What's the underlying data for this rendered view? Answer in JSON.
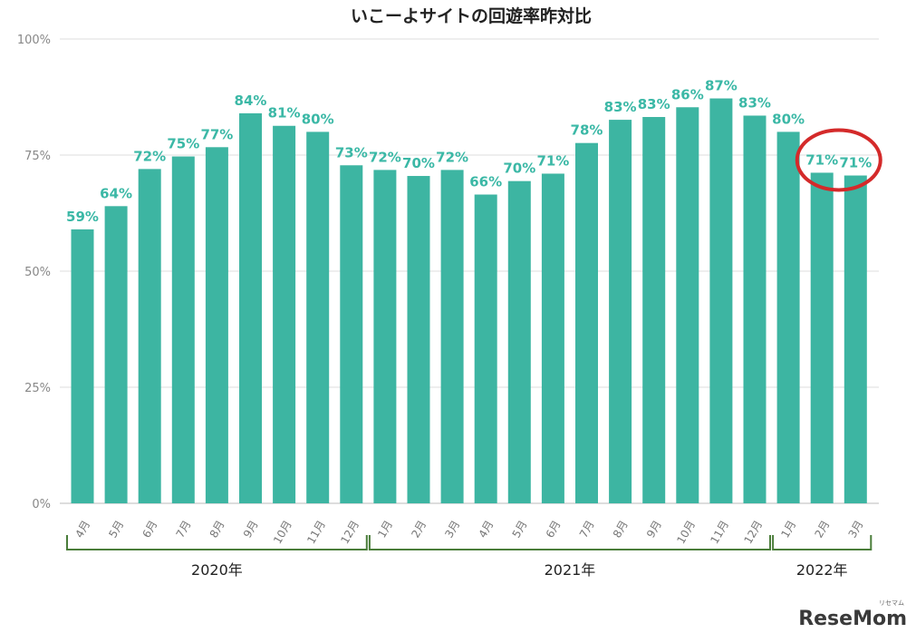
{
  "colors": {
    "bar": "#3db5a2",
    "data_label": "#3bb8a6",
    "grid": "#dddddd",
    "bracket": "#4a7d3a",
    "highlight_circle": "#d42a2a"
  },
  "chart_data": {
    "type": "bar",
    "title": "いこーよサイトの回遊率昨対比",
    "categories": [
      "4月",
      "5月",
      "6月",
      "7月",
      "8月",
      "9月",
      "10月",
      "11月",
      "12月",
      "1月",
      "2月",
      "3月",
      "4月",
      "5月",
      "6月",
      "7月",
      "8月",
      "9月",
      "10月",
      "11月",
      "12月",
      "1月",
      "2月",
      "3月"
    ],
    "values": [
      59,
      64,
      72,
      75,
      77,
      84,
      81,
      80,
      73,
      72,
      70,
      72,
      66,
      70,
      71,
      78,
      83,
      83,
      86,
      87,
      83,
      80,
      71,
      71
    ],
    "bar_values_estimated": [
      59,
      64,
      72,
      74.7,
      76.7,
      84,
      81.3,
      80,
      72.8,
      71.8,
      70.5,
      71.8,
      66.5,
      69.4,
      71,
      77.6,
      82.6,
      83.2,
      85.3,
      87.2,
      83.5,
      80,
      71.2,
      70.6
    ],
    "data_labels": [
      "59%",
      "64%",
      "72%",
      "75%",
      "77%",
      "84%",
      "81%",
      "80%",
      "73%",
      "72%",
      "70%",
      "72%",
      "66%",
      "70%",
      "71%",
      "78%",
      "83%",
      "83%",
      "86%",
      "87%",
      "83%",
      "80%",
      "71%",
      "71%"
    ],
    "ylim": [
      0,
      100
    ],
    "yticks": [
      0,
      25,
      50,
      75,
      100
    ],
    "ytick_labels": [
      "0%",
      "25%",
      "50%",
      "75%",
      "100%"
    ],
    "grid": true,
    "xlabel": "",
    "ylabel": "",
    "groups": [
      {
        "label": "2020年",
        "start_index": 0,
        "end_index": 8
      },
      {
        "label": "2021年",
        "start_index": 9,
        "end_index": 20
      },
      {
        "label": "2022年",
        "start_index": 21,
        "end_index": 23
      }
    ],
    "highlighted_indices": [
      22,
      23
    ]
  },
  "watermark": {
    "text": "ReseMom",
    "subtext": "リセマム"
  }
}
